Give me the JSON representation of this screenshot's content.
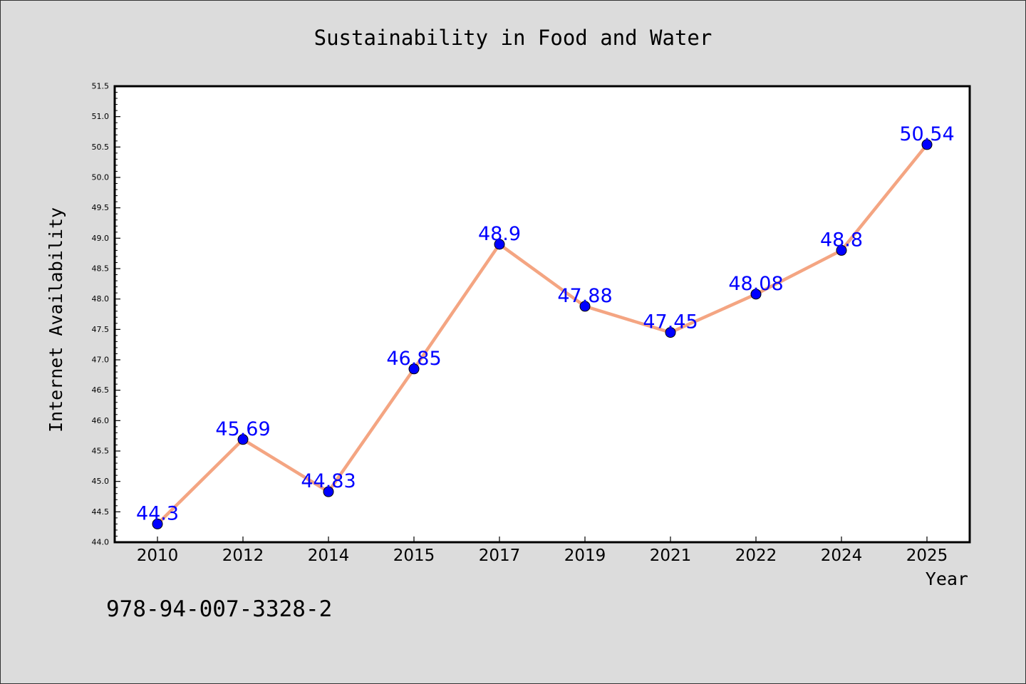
{
  "chart_data": {
    "type": "line",
    "title": "Sustainability in Food and Water",
    "xlabel": "Year",
    "ylabel": "Internet Availability",
    "categories": [
      "2010",
      "2012",
      "2014",
      "2015",
      "2017",
      "2019",
      "2021",
      "2022",
      "2024",
      "2025"
    ],
    "series": [
      {
        "values": [
          44.3,
          45.69,
          44.83,
          46.85,
          48.9,
          47.88,
          47.45,
          48.08,
          48.8,
          50.54
        ]
      }
    ],
    "data_labels": [
      "44.3",
      "45.69",
      "44.83",
      "46.85",
      "48.9",
      "47.88",
      "47.45",
      "48.08",
      "48.8",
      "50.54"
    ],
    "ylim": [
      44.0,
      51.5
    ],
    "y_ticks": [
      "44.0",
      "44.5",
      "45.0",
      "45.5",
      "46.0",
      "46.5",
      "47.0",
      "47.5",
      "48.0",
      "48.5",
      "49.0",
      "49.5",
      "50.0",
      "50.5",
      "51.0",
      "51.5"
    ],
    "grid": false,
    "legend": "none",
    "colors": {
      "line": "#f4a582",
      "marker": "#0000ff",
      "data_label": "#0000ff",
      "background": "#dcdcdc",
      "plot_background": "#ffffff"
    }
  },
  "annotation": "978-94-007-3328-2"
}
